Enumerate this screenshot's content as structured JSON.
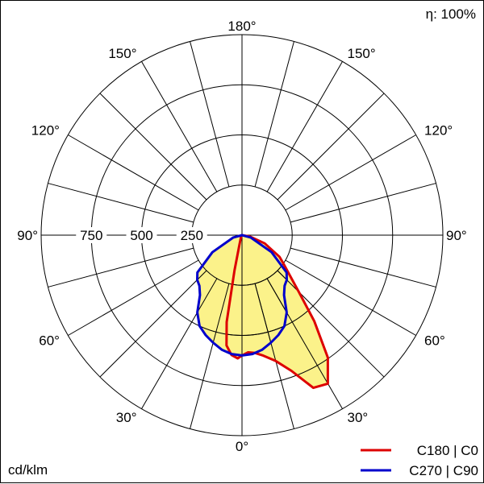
{
  "chart_data": {
    "type": "polar",
    "title": "",
    "efficiency_label": "η: 100%",
    "unit_label": "cd/klm",
    "radial_ticks": [
      250,
      500,
      750
    ],
    "radial_max": 1000,
    "grid": true,
    "angle_grid_step_deg": 15,
    "angle_labels": [
      {
        "text": "180°",
        "angle": 180,
        "side": "center"
      },
      {
        "text": "150°",
        "angle": 150,
        "side": "left"
      },
      {
        "text": "150°",
        "angle": 150,
        "side": "right"
      },
      {
        "text": "120°",
        "angle": 120,
        "side": "left"
      },
      {
        "text": "120°",
        "angle": 120,
        "side": "right"
      },
      {
        "text": "90°",
        "angle": 90,
        "side": "left"
      },
      {
        "text": "90°",
        "angle": 90,
        "side": "right"
      },
      {
        "text": "60°",
        "angle": 60,
        "side": "left"
      },
      {
        "text": "60°",
        "angle": 60,
        "side": "right"
      },
      {
        "text": "30°",
        "angle": 30,
        "side": "left"
      },
      {
        "text": "30°",
        "angle": 30,
        "side": "right"
      },
      {
        "text": "0°",
        "angle": 0,
        "side": "center"
      }
    ],
    "series": [
      {
        "name": "C180 | C0",
        "color": "#dd0000",
        "fill": "#fbf28a",
        "points": [
          {
            "angle": -90,
            "value": 0
          },
          {
            "angle": -60,
            "value": 5
          },
          {
            "angle": -30,
            "value": 10
          },
          {
            "angle": -15,
            "value": 50
          },
          {
            "angle": -12,
            "value": 180
          },
          {
            "angle": -10,
            "value": 440
          },
          {
            "angle": -8,
            "value": 555
          },
          {
            "angle": -5,
            "value": 600
          },
          {
            "angle": -2,
            "value": 615
          },
          {
            "angle": 0,
            "value": 600
          },
          {
            "angle": 3,
            "value": 585
          },
          {
            "angle": 6,
            "value": 590
          },
          {
            "angle": 10,
            "value": 610
          },
          {
            "angle": 15,
            "value": 650
          },
          {
            "angle": 20,
            "value": 720
          },
          {
            "angle": 25,
            "value": 840
          },
          {
            "angle": 30,
            "value": 855
          },
          {
            "angle": 35,
            "value": 745
          },
          {
            "angle": 40,
            "value": 560
          },
          {
            "angle": 45,
            "value": 400
          },
          {
            "angle": 50,
            "value": 310
          },
          {
            "angle": 55,
            "value": 255
          },
          {
            "angle": 60,
            "value": 215
          },
          {
            "angle": 70,
            "value": 120
          },
          {
            "angle": 80,
            "value": 40
          },
          {
            "angle": 90,
            "value": 0
          }
        ]
      },
      {
        "name": "C270 | C90",
        "color": "#0000cc",
        "fill": "#fbf28a",
        "points": [
          {
            "angle": -90,
            "value": 0
          },
          {
            "angle": -75,
            "value": 45
          },
          {
            "angle": -60,
            "value": 170
          },
          {
            "angle": -50,
            "value": 290
          },
          {
            "angle": -45,
            "value": 315
          },
          {
            "angle": -40,
            "value": 330
          },
          {
            "angle": -35,
            "value": 365
          },
          {
            "angle": -30,
            "value": 445
          },
          {
            "angle": -25,
            "value": 500
          },
          {
            "angle": -20,
            "value": 530
          },
          {
            "angle": -15,
            "value": 555
          },
          {
            "angle": -10,
            "value": 580
          },
          {
            "angle": -5,
            "value": 595
          },
          {
            "angle": 0,
            "value": 600
          },
          {
            "angle": 5,
            "value": 595
          },
          {
            "angle": 10,
            "value": 580
          },
          {
            "angle": 15,
            "value": 555
          },
          {
            "angle": 20,
            "value": 530
          },
          {
            "angle": 25,
            "value": 500
          },
          {
            "angle": 30,
            "value": 445
          },
          {
            "angle": 35,
            "value": 365
          },
          {
            "angle": 40,
            "value": 330
          },
          {
            "angle": 45,
            "value": 315
          },
          {
            "angle": 50,
            "value": 290
          },
          {
            "angle": 60,
            "value": 170
          },
          {
            "angle": 75,
            "value": 45
          },
          {
            "angle": 90,
            "value": 0
          }
        ]
      }
    ],
    "legend_position": "bottom-right"
  }
}
